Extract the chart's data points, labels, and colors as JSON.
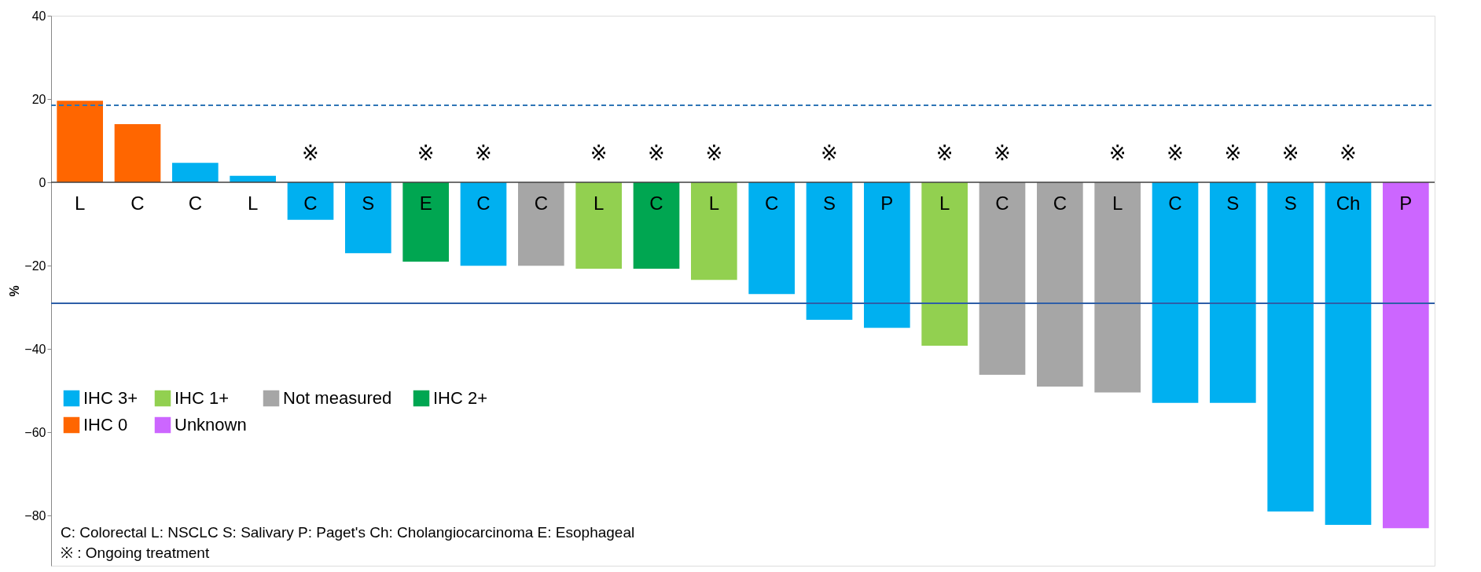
{
  "chart_data": {
    "type": "bar",
    "ylabel": "%",
    "categories": [
      "L",
      "C",
      "C",
      "L",
      "C",
      "S",
      "E",
      "C",
      "C",
      "L",
      "C",
      "L",
      "C",
      "S",
      "P",
      "L",
      "C",
      "C",
      "L",
      "C",
      "S",
      "S",
      "Ch",
      "P"
    ],
    "series": [
      {
        "name": "IHC 3+",
        "color": "#00b0f0",
        "values": [
          null,
          null,
          4.7,
          1.6,
          -9,
          -17,
          null,
          -20,
          null,
          null,
          null,
          null,
          -26.8,
          -33,
          -34.9,
          null,
          null,
          null,
          null,
          -52.9,
          -52.9,
          -79,
          -82.2,
          null
        ]
      },
      {
        "name": "IHC 2+",
        "color": "#00a651",
        "values": [
          null,
          null,
          null,
          null,
          null,
          null,
          -19,
          null,
          null,
          null,
          -20.7,
          null,
          null,
          null,
          null,
          null,
          null,
          null,
          null,
          null,
          null,
          null,
          null,
          null
        ]
      },
      {
        "name": "IHC 1+",
        "color": "#92d050",
        "values": [
          null,
          null,
          null,
          null,
          null,
          null,
          null,
          null,
          null,
          -20.7,
          null,
          -23.4,
          null,
          null,
          null,
          -39.2,
          null,
          null,
          null,
          null,
          null,
          null,
          null,
          null
        ]
      },
      {
        "name": "IHC 0",
        "color": "#ff6600",
        "values": [
          19.6,
          14,
          null,
          null,
          null,
          null,
          null,
          null,
          null,
          null,
          null,
          null,
          null,
          null,
          null,
          null,
          null,
          null,
          null,
          null,
          null,
          null,
          null,
          null
        ]
      },
      {
        "name": "Not  measured",
        "color": "#a6a6a6",
        "values": [
          null,
          null,
          null,
          null,
          null,
          null,
          null,
          null,
          -20,
          null,
          null,
          null,
          null,
          null,
          null,
          null,
          -46.2,
          -49,
          -50.4,
          null,
          null,
          null,
          null,
          null
        ]
      },
      {
        "name": "Unknown",
        "color": "#cc66ff",
        "values": [
          null,
          null,
          null,
          null,
          null,
          null,
          null,
          null,
          null,
          null,
          null,
          null,
          null,
          null,
          null,
          null,
          null,
          null,
          null,
          null,
          null,
          null,
          null,
          -83
        ]
      }
    ],
    "value_labels": [
      null,
      null,
      null,
      null,
      "※",
      null,
      "※",
      "※",
      null,
      "※",
      "※",
      "※",
      null,
      "※",
      null,
      "※",
      "※",
      null,
      "※",
      "※",
      "※",
      "※",
      "※",
      null
    ],
    "ylim": [
      -92,
      40
    ],
    "yticks": [
      -80,
      -60,
      -40,
      -20,
      0,
      20,
      40
    ],
    "ref_lines": [
      {
        "axis": "y",
        "value": 18.5,
        "color": "#2e75b6",
        "line_style": "dashed"
      },
      {
        "axis": "y",
        "value": -29,
        "color": "#2e5fa8",
        "line_style": "solid"
      }
    ],
    "annotations": [
      "C: Colorectal  L: NSCLC  S: Salivary  P: Paget's  Ch: Cholangiocarcinoma  E:  Esophageal",
      "※ : Ongoing treatment"
    ],
    "legend": "bottom left",
    "grid": false
  }
}
